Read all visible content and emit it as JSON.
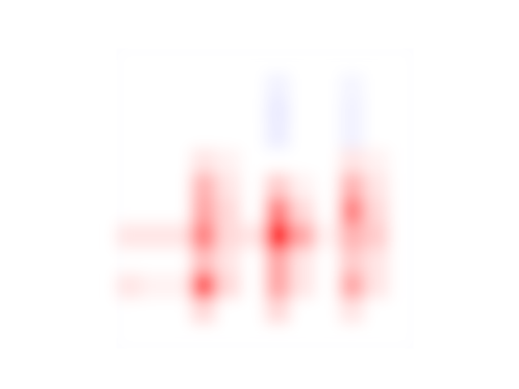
{
  "chart_data": {
    "type": "heatmap",
    "colormap": "bwr",
    "vlim": [
      -1,
      1
    ],
    "values": [
      [
        0,
        0,
        0,
        0,
        0,
        0,
        0,
        0,
        0,
        0,
        0,
        0
      ],
      [
        0,
        0,
        0,
        0,
        0,
        0,
        -0.05,
        0,
        0,
        -0.04,
        0,
        0
      ],
      [
        0,
        0,
        0,
        0,
        0,
        0,
        -0.08,
        0,
        0,
        -0.05,
        0,
        0
      ],
      [
        0,
        0,
        0,
        0,
        0,
        0,
        -0.07,
        0,
        0,
        -0.05,
        0,
        0
      ],
      [
        0,
        0,
        0,
        0.1,
        0.05,
        0,
        0,
        0,
        0,
        0.1,
        0.05,
        0
      ],
      [
        0,
        0,
        0,
        0.3,
        0.1,
        0,
        0.2,
        0.05,
        0,
        0.3,
        0.1,
        0
      ],
      [
        0,
        0,
        0,
        0.35,
        0.15,
        0,
        0.5,
        0.15,
        0,
        0.5,
        0.15,
        0
      ],
      [
        0.1,
        0.1,
        0.1,
        0.5,
        0.15,
        0.1,
        0.9,
        0.35,
        0.05,
        0.3,
        0.2,
        0
      ],
      [
        0,
        0,
        0,
        0.25,
        0.1,
        0,
        0.35,
        0.1,
        0,
        0.2,
        0.1,
        0
      ],
      [
        0.1,
        0.05,
        0.05,
        0.65,
        0.15,
        0,
        0.35,
        0.1,
        0,
        0.35,
        0.1,
        0
      ],
      [
        0,
        0,
        0,
        0.15,
        0,
        0,
        0.15,
        0,
        0,
        0.1,
        0,
        0
      ],
      [
        0,
        0,
        0,
        0,
        0,
        0,
        0,
        0,
        0,
        0,
        0,
        0
      ]
    ]
  }
}
